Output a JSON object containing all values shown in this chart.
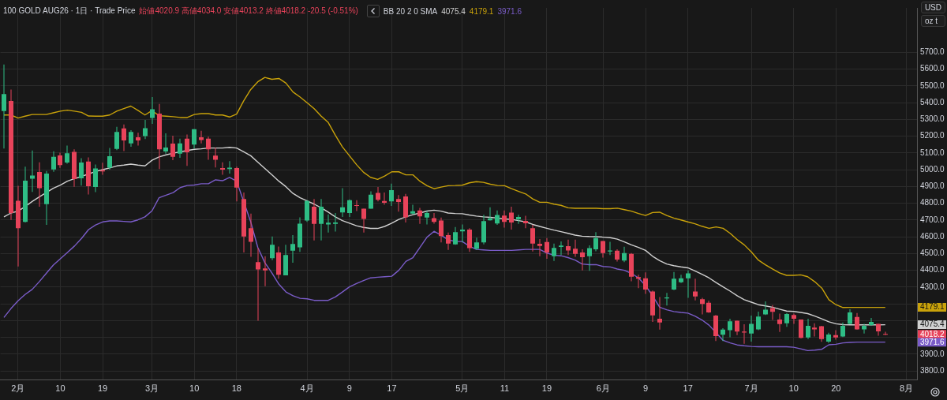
{
  "chart_data": {
    "type": "candlestick",
    "title": "100 GOLD AUG26 · 1日 · Trade Price",
    "subtitle": "始値4020.9 高値4034.0 安値4013.2 終値4018.2 -20.5 (-0.51%)",
    "annotations": [
      "BB 20 2 0 SMA",
      "4075.4",
      "4179.1",
      "3971.6",
      "USD",
      "oz t",
      {
        "text": "4179.1",
        "y": 4179.1
      },
      {
        "text": "4075.4",
        "y": 4075.4
      },
      {
        "text": "4018.2",
        "y": 4018.2
      },
      {
        "text": "3971.6",
        "y": 3971.6
      }
    ],
    "grid": true,
    "ylim": [
      3745,
      5966
    ],
    "yticks": [
      {
        "value": 3800,
        "label": "3800.0"
      },
      {
        "value": 3900,
        "label": "3900.0"
      },
      {
        "value": 4000,
        "label": null
      },
      {
        "value": 4100,
        "label": null
      },
      {
        "value": 4200,
        "label": null
      },
      {
        "value": 4300,
        "label": "4300.0"
      },
      {
        "value": 4400,
        "label": "4400.0"
      },
      {
        "value": 4500,
        "label": "4500.0"
      },
      {
        "value": 4600,
        "label": "4600.0"
      },
      {
        "value": 4700,
        "label": "4700.0"
      },
      {
        "value": 4800,
        "label": "4800.0"
      },
      {
        "value": 4900,
        "label": "4900.0"
      },
      {
        "value": 5000,
        "label": "5000.0"
      },
      {
        "value": 5100,
        "label": "5100.0"
      },
      {
        "value": 5200,
        "label": "5200.0"
      },
      {
        "value": 5300,
        "label": "5300.0"
      },
      {
        "value": 5400,
        "label": "5400.0"
      },
      {
        "value": 5500,
        "label": "5500.0"
      },
      {
        "value": 5600,
        "label": "5600.0"
      },
      {
        "value": 5700,
        "label": "5700.0"
      }
    ],
    "categories": [
      null,
      null,
      "2月",
      null,
      null,
      null,
      null,
      null,
      "10",
      null,
      null,
      null,
      null,
      null,
      "19",
      null,
      null,
      null,
      null,
      null,
      null,
      "3月",
      null,
      null,
      null,
      null,
      null,
      "10",
      null,
      null,
      null,
      null,
      null,
      "18",
      null,
      null,
      null,
      null,
      null,
      null,
      null,
      null,
      null,
      "4月",
      null,
      null,
      null,
      null,
      null,
      "9",
      null,
      null,
      null,
      null,
      null,
      "17",
      null,
      null,
      null,
      null,
      null,
      null,
      null,
      null,
      null,
      "5月",
      null,
      null,
      null,
      null,
      null,
      "11",
      null,
      null,
      null,
      null,
      null,
      "19",
      null,
      null,
      null,
      null,
      null,
      null,
      null,
      "6月",
      null,
      null,
      null,
      null,
      null,
      "9",
      null,
      null,
      null,
      null,
      null,
      "17",
      null,
      null,
      null,
      null,
      null,
      null,
      null,
      null,
      "7月",
      null,
      null,
      null,
      null,
      null,
      "10",
      null,
      null,
      null,
      null,
      null,
      "20",
      null,
      null,
      null,
      null,
      null,
      null,
      null,
      null,
      null,
      "8月",
      null
    ],
    "ohlc": [
      [
        5350,
        5628,
        5127,
        5452
      ],
      [
        5411,
        5479,
        4701,
        4742
      ],
      [
        4815,
        4905,
        4423,
        4651
      ],
      [
        4689,
        5019,
        4685,
        4935
      ],
      [
        4947,
        5115,
        4868,
        4966
      ],
      [
        4987,
        5045,
        4780,
        4890
      ],
      [
        4795,
        4993,
        4671,
        4978
      ],
      [
        5002,
        5110,
        4988,
        5078
      ],
      [
        5086,
        5102,
        5011,
        5028
      ],
      [
        5043,
        5145,
        5036,
        5099
      ],
      [
        5107,
        5122,
        4899,
        4944
      ],
      [
        4949,
        5069,
        4906,
        5043
      ],
      [
        5049,
        5074,
        4853,
        4902
      ],
      [
        4897,
        5031,
        4867,
        5008
      ],
      [
        4998,
        5042,
        4970,
        4990
      ],
      [
        5013,
        5130,
        5001,
        5081
      ],
      [
        5125,
        5256,
        5118,
        5226
      ],
      [
        5247,
        5271,
        5112,
        5175
      ],
      [
        5157,
        5236,
        5137,
        5226
      ],
      [
        5194,
        5221,
        5145,
        5175
      ],
      [
        5201,
        5297,
        5183,
        5248
      ],
      [
        5309,
        5434,
        5274,
        5361
      ],
      [
        5335,
        5393,
        5005,
        5122
      ],
      [
        5109,
        5218,
        5096,
        5133
      ],
      [
        5156,
        5203,
        5058,
        5077
      ],
      [
        5096,
        5186,
        5072,
        5157
      ],
      [
        5186,
        5210,
        5023,
        5104
      ],
      [
        5151,
        5242,
        5127,
        5242
      ],
      [
        5194,
        5233,
        5157,
        5178
      ],
      [
        5186,
        5198,
        5060,
        5122
      ],
      [
        5084,
        5133,
        5014,
        5060
      ],
      [
        5010,
        5045,
        4970,
        5001
      ],
      [
        5005,
        5051,
        4978,
        5013
      ],
      [
        5010,
        5019,
        4811,
        4894
      ],
      [
        4826,
        4864,
        4507,
        4602
      ],
      [
        4651,
        4738,
        4481,
        4570
      ],
      [
        4449,
        4534,
        4099,
        4405
      ],
      [
        4411,
        4484,
        4306,
        4400
      ],
      [
        4472,
        4602,
        4461,
        4552
      ],
      [
        4507,
        4542,
        4350,
        4374
      ],
      [
        4370,
        4552,
        4370,
        4491
      ],
      [
        4517,
        4610,
        4446,
        4557
      ],
      [
        4537,
        4716,
        4510,
        4678
      ],
      [
        4697,
        4819,
        4689,
        4814
      ],
      [
        4780,
        4826,
        4578,
        4677
      ],
      [
        4677,
        4826,
        4578,
        4780
      ],
      [
        4674,
        4734,
        4625,
        4684
      ],
      [
        4677,
        4742,
        4631,
        4686
      ],
      [
        4745,
        4890,
        4719,
        4776
      ],
      [
        4742,
        4823,
        4719,
        4818
      ],
      [
        4789,
        4818,
        4754,
        4785
      ],
      [
        4768,
        4768,
        4625,
        4707
      ],
      [
        4768,
        4871,
        4768,
        4852
      ],
      [
        4862,
        4897,
        4811,
        4821
      ],
      [
        4814,
        4864,
        4792,
        4803
      ],
      [
        4811,
        4917,
        4785,
        4879
      ],
      [
        4826,
        4849,
        4750,
        4808
      ],
      [
        4841,
        4856,
        4686,
        4716
      ],
      [
        4738,
        4791,
        4735,
        4753
      ],
      [
        4757,
        4773,
        4677,
        4722
      ],
      [
        4715,
        4754,
        4674,
        4742
      ],
      [
        4712,
        4742,
        4678,
        4689
      ],
      [
        4697,
        4715,
        4567,
        4604
      ],
      [
        4610,
        4625,
        4522,
        4560
      ],
      [
        4555,
        4658,
        4552,
        4628
      ],
      [
        4633,
        4674,
        4567,
        4643
      ],
      [
        4643,
        4651,
        4510,
        4532
      ],
      [
        4529,
        4595,
        4522,
        4567
      ],
      [
        4567,
        4731,
        4555,
        4694
      ],
      [
        4699,
        4776,
        4697,
        4710
      ],
      [
        4680,
        4757,
        4671,
        4730
      ],
      [
        4727,
        4757,
        4655,
        4689
      ],
      [
        4744,
        4780,
        4643,
        4686
      ],
      [
        4704,
        4731,
        4677,
        4719
      ],
      [
        4695,
        4725,
        4651,
        4681
      ],
      [
        4652,
        4671,
        4513,
        4560
      ],
      [
        4558,
        4587,
        4484,
        4545
      ],
      [
        4569,
        4593,
        4469,
        4507
      ],
      [
        4484,
        4560,
        4456,
        4534
      ],
      [
        4540,
        4572,
        4491,
        4548
      ],
      [
        4544,
        4583,
        4491,
        4519
      ],
      [
        4529,
        4583,
        4481,
        4499
      ],
      [
        4507,
        4525,
        4400,
        4479
      ],
      [
        4484,
        4549,
        4397,
        4532
      ],
      [
        4525,
        4628,
        4514,
        4593
      ],
      [
        4575,
        4575,
        4476,
        4503
      ],
      [
        4512,
        4570,
        4491,
        4519
      ],
      [
        4517,
        4525,
        4453,
        4464
      ],
      [
        4458,
        4541,
        4449,
        4503
      ],
      [
        4499,
        4503,
        4335,
        4362
      ],
      [
        4359,
        4374,
        4294,
        4350
      ],
      [
        4352,
        4388,
        4259,
        4286
      ],
      [
        4274,
        4279,
        4092,
        4131
      ],
      [
        4111,
        4241,
        4046,
        4089
      ],
      [
        4233,
        4266,
        4190,
        4238
      ],
      [
        4286,
        4390,
        4282,
        4350
      ],
      [
        4329,
        4374,
        4324,
        4352
      ],
      [
        4352,
        4400,
        4236,
        4382
      ],
      [
        4274,
        4350,
        4221,
        4244
      ],
      [
        4228,
        4236,
        4137,
        4200
      ],
      [
        4207,
        4218,
        4146,
        4149
      ],
      [
        4130,
        4134,
        3978,
        4008
      ],
      [
        4016,
        4055,
        3978,
        4046
      ],
      [
        4043,
        4111,
        4001,
        4096
      ],
      [
        4099,
        4099,
        4013,
        4035
      ],
      [
        4035,
        4078,
        3962,
        4029
      ],
      [
        4023,
        4130,
        3975,
        4081
      ],
      [
        4048,
        4154,
        4043,
        4124
      ],
      [
        4137,
        4215,
        4134,
        4165
      ],
      [
        4175,
        4192,
        4104,
        4152
      ],
      [
        4107,
        4142,
        4032,
        4079
      ],
      [
        4084,
        4145,
        4063,
        4139
      ],
      [
        4134,
        4142,
        4081,
        4111
      ],
      [
        4107,
        4107,
        3993,
        3997
      ],
      [
        4000,
        4111,
        3990,
        4069
      ],
      [
        4058,
        4084,
        4005,
        4048
      ],
      [
        4066,
        4069,
        3974,
        3990
      ],
      [
        3975,
        4028,
        3967,
        4017
      ],
      [
        4013,
        4043,
        3987,
        4000
      ],
      [
        4005,
        4089,
        4002,
        4069
      ],
      [
        4081,
        4168,
        4078,
        4149
      ],
      [
        4122,
        4145,
        4046,
        4048
      ],
      [
        4048,
        4081,
        4023,
        4069
      ],
      [
        4073,
        4116,
        4069,
        4093
      ],
      [
        4081,
        4081,
        4010,
        4036
      ],
      [
        4020.9,
        4034.0,
        4013.2,
        4018.2
      ],
      null,
      null,
      null,
      null
    ],
    "colors": [
      "#2ebd85",
      "#e8435a",
      "#e8435a",
      "#2ebd85",
      "#2ebd85",
      "#e8435a",
      "#2ebd85",
      "#2ebd85",
      "#e8435a",
      "#2ebd85",
      "#e8435a",
      "#2ebd85",
      "#e8435a",
      "#2ebd85",
      "#e8435a",
      "#2ebd85",
      "#2ebd85",
      "#e8435a",
      "#2ebd85",
      "#e8435a",
      "#2ebd85",
      "#2ebd85",
      "#e8435a",
      "#2ebd85",
      "#e8435a",
      "#2ebd85",
      "#e8435a",
      "#2ebd85",
      "#e8435a",
      "#e8435a",
      "#e8435a",
      "#e8435a",
      "#2ebd85",
      "#e8435a",
      "#e8435a",
      "#e8435a",
      "#e8435a",
      "#e8435a",
      "#2ebd85",
      "#e8435a",
      "#2ebd85",
      "#2ebd85",
      "#2ebd85",
      "#2ebd85",
      "#e8435a",
      "#2ebd85",
      "#2ebd85",
      "#2ebd85",
      "#2ebd85",
      "#2ebd85",
      "#e8435a",
      "#e8435a",
      "#2ebd85",
      "#e8435a",
      "#e8435a",
      "#2ebd85",
      "#e8435a",
      "#e8435a",
      "#2ebd85",
      "#e8435a",
      "#2ebd85",
      "#e8435a",
      "#e8435a",
      "#e8435a",
      "#2ebd85",
      "#2ebd85",
      "#e8435a",
      "#2ebd85",
      "#2ebd85",
      "#2ebd85",
      "#2ebd85",
      "#e8435a",
      "#e8435a",
      "#2ebd85",
      "#e8435a",
      "#e8435a",
      "#e8435a",
      "#e8435a",
      "#2ebd85",
      "#2ebd85",
      "#e8435a",
      "#e8435a",
      "#e8435a",
      "#2ebd85",
      "#2ebd85",
      "#e8435a",
      "#2ebd85",
      "#e8435a",
      "#2ebd85",
      "#e8435a",
      "#e8435a",
      "#e8435a",
      "#e8435a",
      "#e8435a",
      "#2ebd85",
      "#2ebd85",
      "#2ebd85",
      "#2ebd85",
      "#e8435a",
      "#e8435a",
      "#e8435a",
      "#e8435a",
      "#2ebd85",
      "#2ebd85",
      "#e8435a",
      "#e8435a",
      "#2ebd85",
      "#2ebd85",
      "#2ebd85",
      "#e8435a",
      "#e8435a",
      "#2ebd85",
      "#e8435a",
      "#e8435a",
      "#2ebd85",
      "#e8435a",
      "#e8435a",
      "#2ebd85",
      "#e8435a",
      "#2ebd85",
      "#2ebd85",
      "#e8435a",
      "#2ebd85",
      "#2ebd85",
      "#e8435a",
      "#e8435a",
      null,
      null,
      null,
      null
    ],
    "series": [
      {
        "type": "line",
        "color": "#d0d0d0",
        "values": [
          4719,
          4742,
          4753,
          4780,
          4811,
          4838,
          4864,
          4890,
          4909,
          4932,
          4947,
          4960,
          4975,
          4990,
          5001,
          5011,
          5023,
          5028,
          5034,
          5028,
          5023,
          5057,
          5077,
          5089,
          5099,
          5107,
          5115,
          5122,
          5125,
          5130,
          5130,
          5130,
          5134,
          5130,
          5107,
          5084,
          5046,
          5008,
          4970,
          4932,
          4899,
          4859,
          4833,
          4814,
          4795,
          4773,
          4747,
          4719,
          4697,
          4681,
          4666,
          4656,
          4650,
          4650,
          4662,
          4681,
          4704,
          4719,
          4732,
          4742,
          4754,
          4759,
          4753,
          4742,
          4739,
          4738,
          4730,
          4724,
          4719,
          4716,
          4712,
          4707,
          4704,
          4697,
          4689,
          4674,
          4662,
          4651,
          4640,
          4631,
          4621,
          4610,
          4604,
          4602,
          4601,
          4598,
          4595,
          4586,
          4570,
          4552,
          4537,
          4519,
          4484,
          4458,
          4438,
          4428,
          4421,
          4415,
          4397,
          4377,
          4355,
          4327,
          4301,
          4276,
          4248,
          4225,
          4210,
          4195,
          4188,
          4180,
          4168,
          4157,
          4155,
          4149,
          4142,
          4127,
          4111,
          4093,
          4081,
          4076,
          4075,
          4075,
          4075,
          4075,
          4075,
          4075.4,
          null,
          null,
          null,
          null
        ]
      },
      {
        "type": "line",
        "color": "#c9a20a",
        "values": [
          5327,
          5327,
          5309,
          5320,
          5330,
          5330,
          5330,
          5340,
          5350,
          5356,
          5350,
          5343,
          5321,
          5320,
          5320,
          5327,
          5350,
          5365,
          5380,
          5355,
          5327,
          5353,
          5323,
          5320,
          5317,
          5312,
          5312,
          5330,
          5335,
          5335,
          5327,
          5327,
          5315,
          5332,
          5411,
          5479,
          5525,
          5551,
          5540,
          5545,
          5517,
          5464,
          5434,
          5400,
          5365,
          5320,
          5282,
          5206,
          5137,
          5084,
          5031,
          4985,
          4955,
          4943,
          4963,
          4988,
          4988,
          4970,
          4970,
          4932,
          4905,
          4887,
          4897,
          4905,
          4906,
          4908,
          4922,
          4929,
          4925,
          4914,
          4906,
          4905,
          4887,
          4871,
          4856,
          4826,
          4806,
          4806,
          4795,
          4788,
          4773,
          4770,
          4770,
          4770,
          4770,
          4768,
          4768,
          4771,
          4762,
          4753,
          4739,
          4727,
          4745,
          4747,
          4727,
          4712,
          4701,
          4689,
          4678,
          4663,
          4651,
          4659,
          4651,
          4621,
          4583,
          4552,
          4510,
          4461,
          4433,
          4408,
          4385,
          4370,
          4370,
          4373,
          4362,
          4332,
          4294,
          4225,
          4195,
          4178,
          4179,
          4179,
          4179,
          4179,
          4179,
          4179.1,
          null,
          null,
          null,
          null
        ]
      },
      {
        "type": "line",
        "color": "#7a5cc8",
        "values": [
          4119,
          4172,
          4218,
          4256,
          4286,
          4332,
          4382,
          4431,
          4469,
          4507,
          4545,
          4590,
          4643,
          4671,
          4689,
          4695,
          4695,
          4692,
          4689,
          4701,
          4719,
          4755,
          4833,
          4849,
          4864,
          4894,
          4906,
          4909,
          4917,
          4917,
          4940,
          4935,
          4955,
          4932,
          4811,
          4689,
          4537,
          4446,
          4385,
          4317,
          4271,
          4248,
          4233,
          4230,
          4221,
          4221,
          4221,
          4241,
          4271,
          4301,
          4321,
          4339,
          4355,
          4359,
          4362,
          4365,
          4400,
          4453,
          4476,
          4537,
          4598,
          4633,
          4610,
          4583,
          4572,
          4572,
          4545,
          4525,
          4522,
          4519,
          4519,
          4519,
          4519,
          4522,
          4525,
          4525,
          4525,
          4503,
          4491,
          4487,
          4476,
          4461,
          4438,
          4434,
          4434,
          4423,
          4420,
          4408,
          4400,
          4382,
          4355,
          4309,
          4248,
          4180,
          4165,
          4154,
          4149,
          4145,
          4127,
          4104,
          4073,
          4028,
          3982,
          3967,
          3955,
          3950,
          3946,
          3944,
          3944,
          3944,
          3944,
          3944,
          3941,
          3932,
          3921,
          3924,
          3929,
          3956,
          3959,
          3967,
          3970,
          3972,
          3972,
          3972,
          3972,
          3971.6,
          null,
          null,
          null,
          null
        ]
      }
    ]
  }
}
